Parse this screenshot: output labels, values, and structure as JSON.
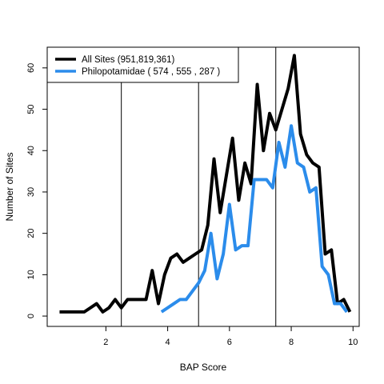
{
  "chart_data": {
    "type": "line",
    "xlabel": "BAP Score",
    "ylabel": "Number of Sites",
    "xlim": [
      0.1,
      10.2
    ],
    "ylim": [
      -2.5,
      65
    ],
    "x_ticks": [
      2,
      4,
      6,
      8,
      10
    ],
    "y_ticks": [
      0,
      10,
      20,
      30,
      40,
      50,
      60
    ],
    "vlines": [
      2.5,
      5.0,
      7.5
    ],
    "legend_position": "top-left",
    "series": [
      {
        "name": "All Sites (951,819,361)",
        "color": "#000000",
        "x": [
          0.5,
          0.7,
          0.9,
          1.1,
          1.3,
          1.5,
          1.7,
          1.9,
          2.1,
          2.3,
          2.5,
          2.7,
          2.9,
          3.1,
          3.3,
          3.5,
          3.7,
          3.9,
          4.1,
          4.3,
          4.5,
          4.7,
          4.9,
          5.1,
          5.3,
          5.5,
          5.7,
          5.9,
          6.1,
          6.3,
          6.5,
          6.7,
          6.9,
          7.1,
          7.3,
          7.5,
          7.7,
          7.9,
          8.1,
          8.3,
          8.5,
          8.7,
          8.9,
          9.1,
          9.3,
          9.5,
          9.7,
          9.9
        ],
        "values": [
          1,
          1,
          1,
          1,
          1,
          2,
          3,
          1,
          2,
          4,
          2,
          4,
          4,
          4,
          4,
          11,
          3,
          10,
          14,
          15,
          13,
          14,
          15,
          16,
          22,
          38,
          25,
          34,
          43,
          28,
          37,
          32,
          56,
          40,
          49,
          45,
          50,
          55,
          63,
          44,
          39,
          37,
          36,
          15,
          16,
          3,
          4,
          1
        ]
      },
      {
        "name": "Philopotamidae  ( 574 , 555 , 287 )",
        "color": "#2b8ceb",
        "x": [
          3.8,
          4.0,
          4.2,
          4.4,
          4.6,
          4.8,
          5.0,
          5.2,
          5.4,
          5.6,
          5.8,
          6.0,
          6.2,
          6.4,
          6.6,
          6.8,
          7.0,
          7.2,
          7.4,
          7.6,
          7.8,
          8.0,
          8.2,
          8.4,
          8.6,
          8.8,
          9.0,
          9.2,
          9.4,
          9.6,
          9.8
        ],
        "values": [
          1,
          2,
          3,
          4,
          4,
          6,
          8,
          11,
          20,
          9,
          15,
          27,
          16,
          17,
          17,
          33,
          33,
          33,
          31,
          42,
          36,
          46,
          37,
          36,
          30,
          31,
          12,
          10,
          3,
          3,
          1
        ]
      }
    ]
  }
}
